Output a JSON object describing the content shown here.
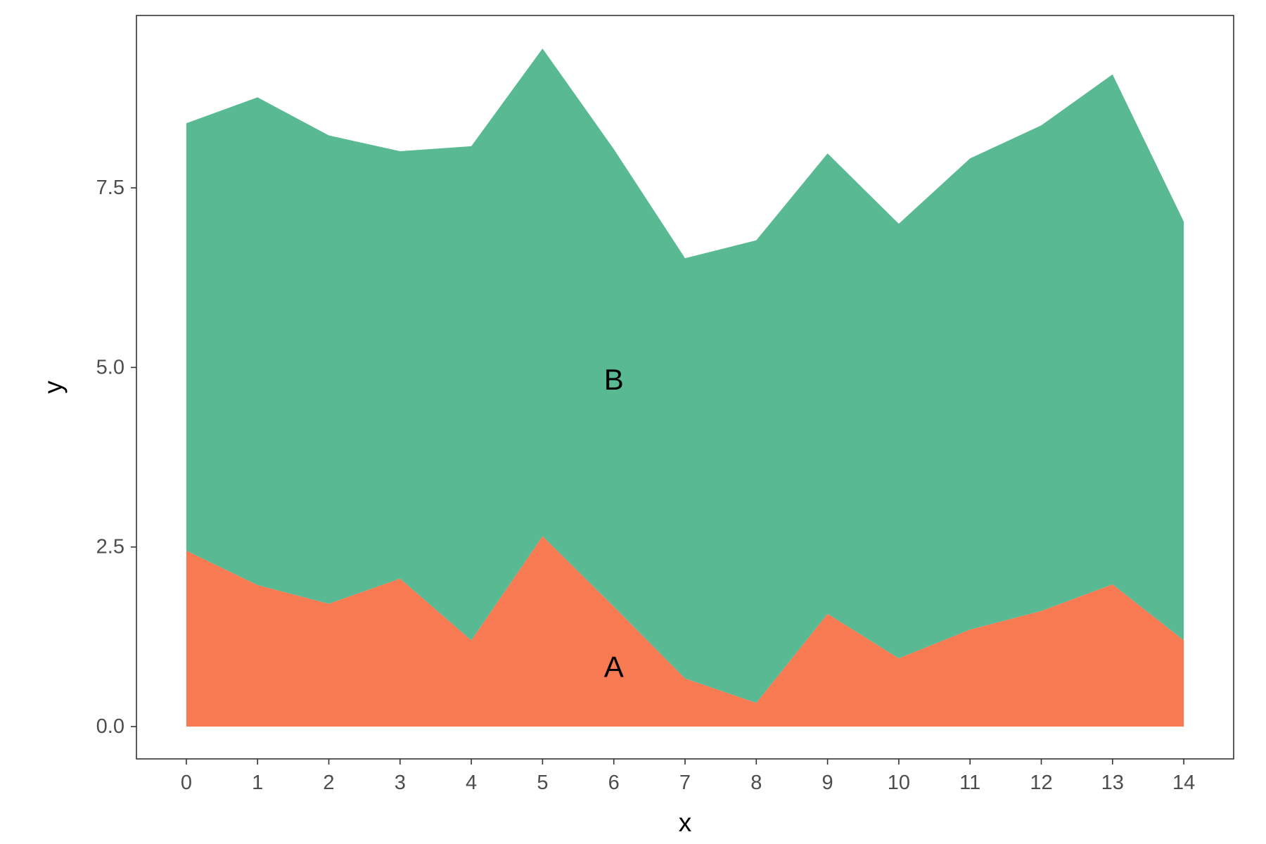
{
  "chart_data": {
    "type": "area",
    "stacked": true,
    "xlabel": "x",
    "ylabel": "y",
    "x": [
      0,
      1,
      2,
      3,
      4,
      5,
      6,
      7,
      8,
      9,
      10,
      11,
      12,
      13,
      14
    ],
    "xlim": [
      -0.7,
      14.7
    ],
    "ylim": [
      -0.45,
      9.9
    ],
    "x_ticks": [
      0,
      1,
      2,
      3,
      4,
      5,
      6,
      7,
      8,
      9,
      10,
      11,
      12,
      13,
      14
    ],
    "y_ticks": [
      0.0,
      2.5,
      5.0,
      7.5
    ],
    "y_tick_labels": [
      "0.0",
      "2.5",
      "5.0",
      "7.5"
    ],
    "grid": false,
    "legend": "none",
    "series": [
      {
        "name": "A",
        "color": "#f87a53",
        "values": [
          2.45,
          1.97,
          1.71,
          2.06,
          1.2,
          2.65,
          1.67,
          0.67,
          0.33,
          1.57,
          0.95,
          1.35,
          1.61,
          1.98,
          1.2
        ],
        "label_at": {
          "x": 6,
          "y": 0.8
        }
      },
      {
        "name": "B",
        "color": "#58b993",
        "values": [
          5.95,
          6.79,
          6.52,
          5.95,
          6.88,
          6.79,
          6.37,
          5.85,
          6.44,
          6.41,
          6.05,
          6.56,
          6.76,
          7.1,
          5.83
        ],
        "label_at": {
          "x": 6,
          "y": 4.8
        }
      }
    ]
  }
}
